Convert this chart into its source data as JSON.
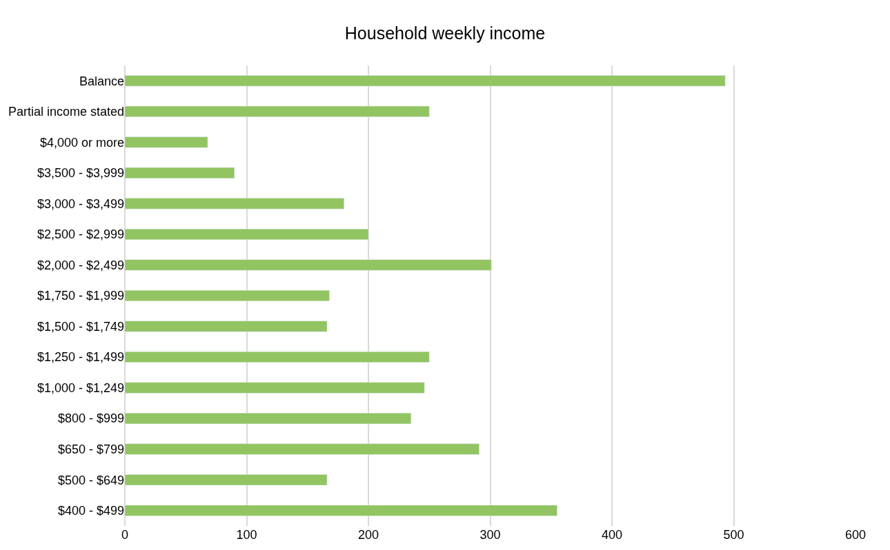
{
  "chart_data": {
    "type": "bar",
    "orientation": "horizontal",
    "title": "Household weekly income",
    "categories": [
      "Balance",
      "Partial income stated",
      "$4,000 or more",
      "$3,500 - $3,999",
      "$3,000 - $3,499",
      "$2,500 - $2,999",
      "$2,000 - $2,499",
      "$1,750 - $1,999",
      "$1,500 - $1,749",
      "$1,250 - $1,499",
      "$1,000 - $1,249",
      "$800 - $999",
      "$650 - $799",
      "$500 - $649",
      "$400 - $499"
    ],
    "values": [
      493,
      250,
      68,
      90,
      180,
      200,
      301,
      168,
      166,
      250,
      246,
      235,
      291,
      166,
      355
    ],
    "color": "#92c462",
    "xlim": [
      0,
      600
    ],
    "xticks": [
      0,
      100,
      200,
      300,
      400,
      500,
      600
    ],
    "grid": "x"
  }
}
